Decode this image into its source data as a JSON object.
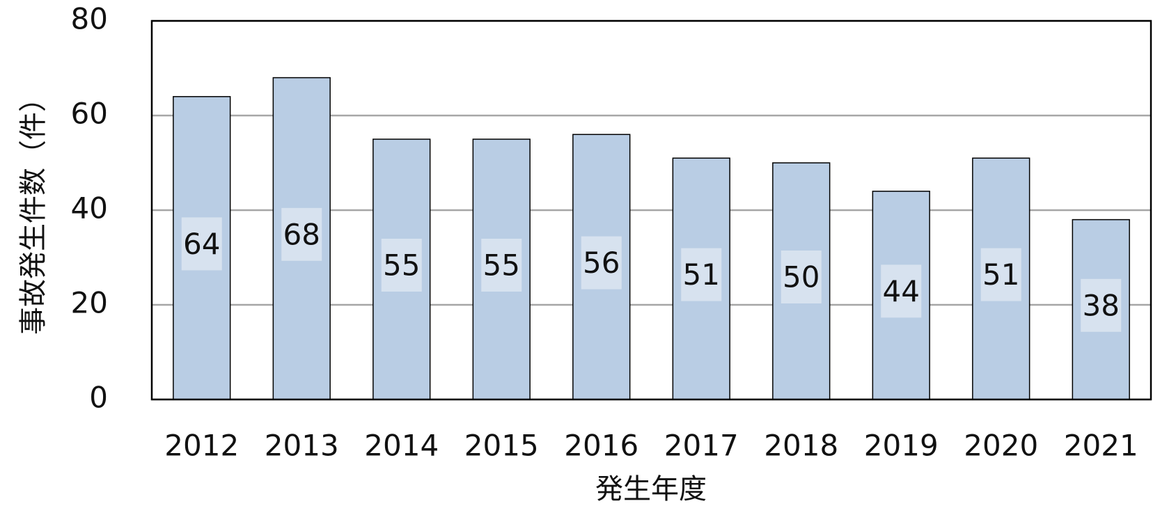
{
  "chart_data": {
    "type": "bar",
    "categories": [
      "2012",
      "2013",
      "2014",
      "2015",
      "2016",
      "2017",
      "2018",
      "2019",
      "2020",
      "2021"
    ],
    "values": [
      64,
      68,
      55,
      55,
      56,
      51,
      50,
      44,
      51,
      38
    ],
    "color": "#b9cde4",
    "x_label": "発生年度",
    "y_label": "事故発生件数（件）",
    "ylim": [
      0,
      80
    ],
    "yticks": [
      0,
      20,
      40,
      60,
      80
    ],
    "grid": true
  }
}
